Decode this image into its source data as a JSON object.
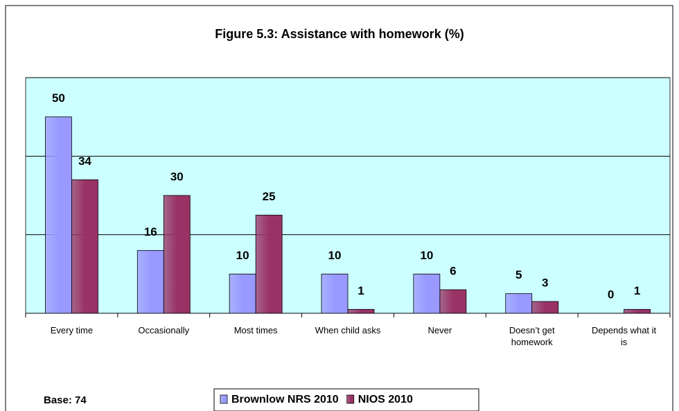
{
  "chart_data": {
    "type": "bar",
    "title": "Figure 5.3: Assistance with homework (%)",
    "categories": [
      "Every time",
      "Occasionally",
      "Most times",
      "When child asks",
      "Never",
      "Doesn’t get homework",
      "Depends what it is"
    ],
    "series": [
      {
        "name": "Brownlow NRS 2010",
        "color": "#9999ff",
        "values": [
          50,
          16,
          10,
          10,
          10,
          5,
          0
        ]
      },
      {
        "name": "NIOS 2010",
        "color": "#993366",
        "values": [
          34,
          30,
          25,
          1,
          6,
          3,
          1
        ]
      }
    ],
    "ylim": [
      0,
      60
    ],
    "yticks": [
      0,
      20,
      40,
      60
    ],
    "grid": true,
    "annotation": "Base: 74"
  }
}
